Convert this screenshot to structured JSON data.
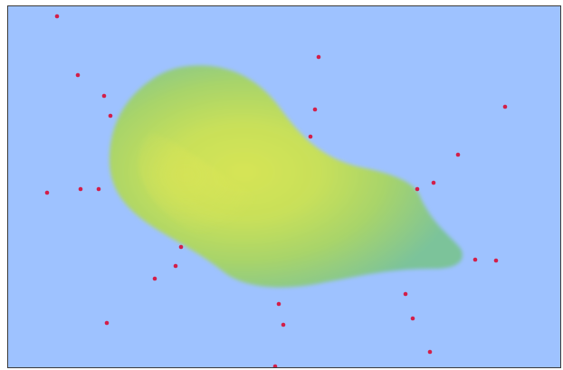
{
  "colors": {
    "background": "#9ec2ff",
    "blob_edge": "#7cc39a",
    "blob_mid": "#a8d46a",
    "blob_core": "#d6e456",
    "point": "#d21f4a",
    "frame": "#3a3a3a"
  }
}
